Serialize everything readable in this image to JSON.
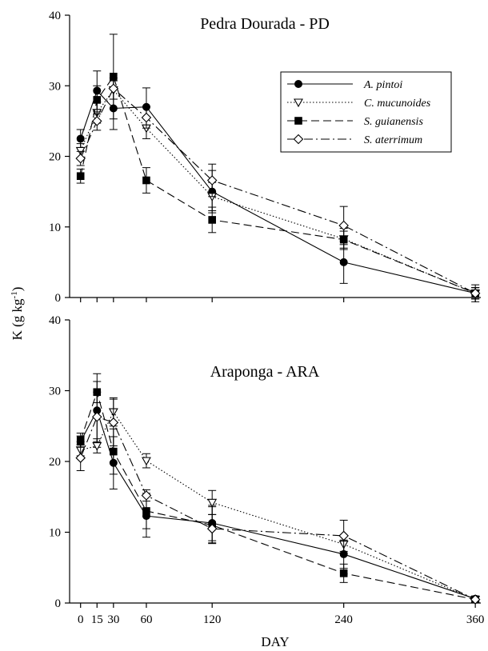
{
  "chart_data": [
    {
      "type": "line",
      "title": "Pedra Dourada - PD",
      "x": [
        0,
        15,
        30,
        60,
        120,
        240,
        360
      ],
      "xlim": [
        -10,
        365
      ],
      "ylim": [
        0,
        40
      ],
      "yticks": [
        0,
        10,
        20,
        30,
        40
      ],
      "ylabel": "K (g kg-1)",
      "legend": "top-right",
      "series": [
        {
          "name": "A. pintoi",
          "marker": "circle-filled",
          "dash": "solid",
          "values": [
            22.5,
            29.3,
            26.8,
            27.0,
            15.0,
            5.0,
            0.6
          ],
          "errors": [
            1.3,
            2.8,
            3.0,
            2.7,
            3.0,
            3.0,
            1.2
          ]
        },
        {
          "name": "C. mucunoides",
          "marker": "triangle-down-open",
          "dash": "dotted",
          "values": [
            20.8,
            26.2,
            29.4,
            24.0,
            14.3,
            8.3,
            0.6
          ],
          "errors": [
            1.0,
            1.5,
            1.3,
            1.5,
            2.0,
            1.5,
            0.8
          ]
        },
        {
          "name": "S. guianensis",
          "marker": "square-filled",
          "dash": "dashed",
          "values": [
            17.2,
            28.0,
            31.3,
            16.6,
            11.0,
            8.2,
            0.6
          ],
          "errors": [
            1.0,
            2.0,
            6.0,
            1.8,
            1.8,
            1.2,
            0.8
          ]
        },
        {
          "name": "S. aterrimum",
          "marker": "diamond-open",
          "dash": "dashdot",
          "values": [
            19.7,
            25.0,
            29.6,
            25.5,
            16.6,
            10.2,
            0.6
          ],
          "errors": [
            1.0,
            1.3,
            1.5,
            1.5,
            2.3,
            2.7,
            0.8
          ]
        }
      ]
    },
    {
      "type": "line",
      "title": "Araponga - ARA",
      "x": [
        0,
        15,
        30,
        60,
        120,
        240,
        360
      ],
      "xlim": [
        -10,
        365
      ],
      "ylim": [
        0,
        40
      ],
      "xticks": [
        0,
        15,
        30,
        60,
        120,
        240,
        360
      ],
      "yticks": [
        0,
        10,
        20,
        30,
        40
      ],
      "xlabel": "DAY",
      "series": [
        {
          "name": "A. pintoi",
          "marker": "circle-filled",
          "dash": "solid",
          "values": [
            22.8,
            27.2,
            19.8,
            12.3,
            11.3,
            6.9,
            0.6
          ],
          "errors": [
            0.8,
            5.2,
            3.7,
            3.0,
            2.5,
            2.0,
            0.4
          ]
        },
        {
          "name": "C. mucunoides",
          "marker": "triangle-down-open",
          "dash": "dotted",
          "values": [
            21.6,
            22.2,
            27.0,
            20.1,
            14.2,
            8.3,
            0.5
          ],
          "errors": [
            0.8,
            1.0,
            2.0,
            1.0,
            1.7,
            1.2,
            0.4
          ]
        },
        {
          "name": "S. guianensis",
          "marker": "square-filled",
          "dash": "dashed",
          "values": [
            23.0,
            29.8,
            21.4,
            13.0,
            11.0,
            4.2,
            0.5
          ],
          "errors": [
            1.0,
            1.5,
            3.2,
            2.5,
            2.6,
            1.3,
            0.4
          ]
        },
        {
          "name": "S. aterrimum",
          "marker": "diamond-open",
          "dash": "dashdot",
          "values": [
            20.5,
            26.3,
            25.5,
            15.2,
            10.5,
            9.5,
            0.5
          ],
          "errors": [
            1.8,
            3.5,
            3.3,
            0.8,
            2.0,
            2.2,
            0.4
          ]
        }
      ]
    }
  ]
}
